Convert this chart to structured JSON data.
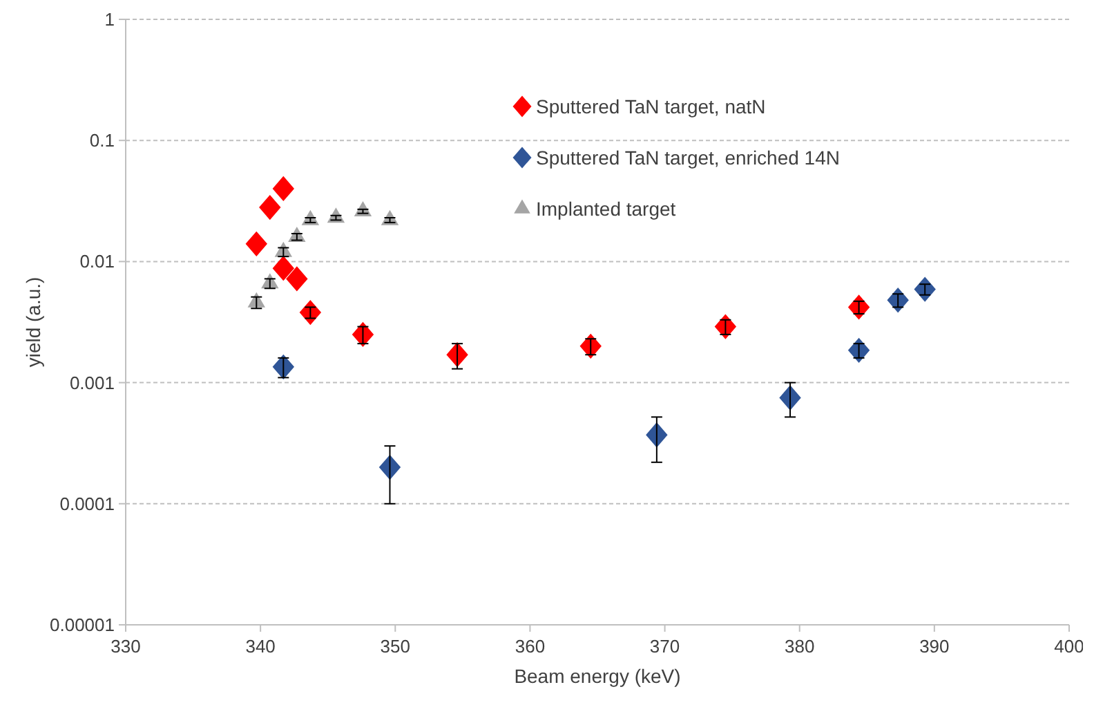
{
  "chart_data": {
    "type": "scatter",
    "xlabel": "Beam energy (keV)",
    "ylabel": "yield (a.u.)",
    "log": "y",
    "grid": "y",
    "legend": "top right",
    "xlim": [
      330,
      400
    ],
    "xticks": [
      330,
      340,
      350,
      360,
      370,
      380,
      390,
      400
    ],
    "ylim": [
      1e-05,
      1
    ],
    "yticks": [
      {
        "value": 1e-05,
        "label": "0.00001"
      },
      0.0001,
      0.001,
      0.01,
      0.1,
      1
    ],
    "series": [
      {
        "name": "Sputtered TaN target, natN",
        "color": "#ff0000",
        "marker": "diamond",
        "x": [
          339.7,
          340.7,
          341.7,
          341.7,
          342.7,
          343.7,
          347.6,
          354.6,
          364.5,
          374.5,
          384.4
        ],
        "values": [
          0.014,
          0.028,
          0.04,
          0.0088,
          0.0072,
          0.0038,
          0.0025,
          0.0017,
          0.002,
          0.0029,
          0.0042
        ],
        "errors": [
          null,
          null,
          null,
          null,
          null,
          [
            0.0034,
            0.0042
          ],
          [
            0.0021,
            0.0029
          ],
          [
            0.0013,
            0.0021
          ],
          [
            0.0017,
            0.0023
          ],
          [
            0.0025,
            0.0033
          ],
          [
            0.0037,
            0.0047
          ]
        ]
      },
      {
        "name": "Sputtered TaN target, enriched 14N",
        "color": "#2f5597",
        "marker": "diamond",
        "x": [
          341.7,
          349.6,
          369.4,
          379.3,
          384.4,
          387.3,
          389.3
        ],
        "values": [
          0.00135,
          0.0002,
          0.00037,
          0.00075,
          0.00185,
          0.0048,
          0.0059
        ],
        "errors": [
          [
            0.0011,
            0.0016
          ],
          [
            0.0001,
            0.0003
          ],
          [
            0.00022,
            0.00052
          ],
          [
            0.00052,
            0.001
          ],
          [
            0.0016,
            0.0021
          ],
          [
            0.0042,
            0.0054
          ],
          [
            0.0053,
            0.0065
          ]
        ]
      },
      {
        "name": "Implanted target",
        "color": "#a5a5a5",
        "marker": "triangle",
        "x": [
          339.7,
          340.7,
          341.7,
          342.7,
          343.7,
          345.6,
          347.6,
          349.6
        ],
        "values": [
          0.0046,
          0.0066,
          0.012,
          0.016,
          0.022,
          0.023,
          0.026,
          0.022
        ],
        "errors": [
          [
            0.0041,
            0.0051
          ],
          [
            0.006,
            0.0072
          ],
          [
            0.011,
            0.013
          ],
          [
            0.015,
            0.017
          ],
          [
            0.021,
            0.023
          ],
          [
            0.022,
            0.024
          ],
          [
            0.025,
            0.027
          ],
          [
            0.021,
            0.023
          ]
        ]
      }
    ]
  }
}
